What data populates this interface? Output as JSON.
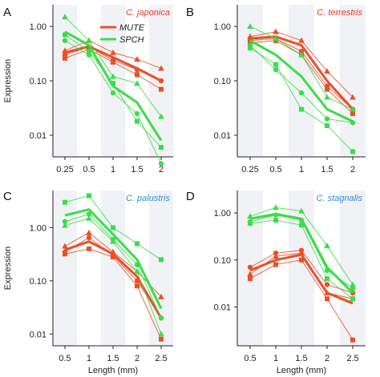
{
  "colors": {
    "mute": "#e8502a",
    "spch": "#3cdc4a",
    "speciesRed": "#e8342a",
    "speciesBlue": "#2a8fd8",
    "stripe": "#f1f2f6"
  },
  "legend": [
    {
      "key": "mute",
      "label": "MUTE"
    },
    {
      "key": "spch",
      "label": "SPCH"
    }
  ],
  "xlabel": "Length (mm)",
  "ylabel": "Expression",
  "chart_data": [
    {
      "letter": "A",
      "species": "C. japonica",
      "species_color": "speciesRed",
      "type": "line",
      "y_scale": "log",
      "ylim": [
        0.004,
        2.5
      ],
      "x": [
        0.25,
        0.5,
        1,
        1.5,
        2
      ],
      "xticklabels": [
        "0.25",
        "0.5",
        "1",
        "1.5",
        "2"
      ],
      "yticks": [
        1,
        0.1,
        0.01
      ],
      "yticklabels": [
        "1.00",
        "0.10",
        "0.01"
      ],
      "series": [
        {
          "name": "MUTE",
          "key": "mute",
          "values": [
            0.33,
            0.43,
            0.27,
            0.17,
            0.1
          ],
          "replicates": [
            {
              "marker": "triangle",
              "values": [
                0.36,
                0.55,
                0.33,
                0.25,
                0.17
              ]
            },
            {
              "marker": "circle",
              "values": [
                0.3,
                0.42,
                0.24,
                0.16,
                0.1
              ]
            },
            {
              "marker": "square",
              "values": [
                0.26,
                0.38,
                0.22,
                0.13,
                0.07
              ]
            }
          ]
        },
        {
          "name": "SPCH",
          "key": "spch",
          "values": [
            0.8,
            0.45,
            0.08,
            0.04,
            0.008
          ],
          "replicates": [
            {
              "marker": "triangle",
              "values": [
                1.5,
                0.55,
                0.12,
                0.09,
                0.022
              ]
            },
            {
              "marker": "circle",
              "values": [
                0.55,
                0.3,
                0.06,
                0.025,
                0.003
              ]
            },
            {
              "marker": "square",
              "values": [
                0.7,
                0.35,
                0.09,
                0.018,
                0.006
              ]
            }
          ]
        }
      ]
    },
    {
      "letter": "B",
      "species": "C. terrestris",
      "species_color": "speciesRed",
      "type": "line",
      "y_scale": "log",
      "ylim": [
        0.004,
        2.5
      ],
      "x": [
        0.25,
        0.5,
        1,
        1.5,
        2
      ],
      "xticklabels": [
        "0.25",
        "0.5",
        "1",
        "1.5",
        "2"
      ],
      "yticks": [
        1,
        0.1,
        0.01
      ],
      "yticklabels": [
        "1.00",
        "0.10",
        "0.01"
      ],
      "series": [
        {
          "name": "MUTE",
          "key": "mute",
          "values": [
            0.6,
            0.65,
            0.45,
            0.1,
            0.03
          ],
          "replicates": [
            {
              "marker": "triangle",
              "values": [
                0.65,
                0.8,
                0.55,
                0.15,
                0.05
              ]
            },
            {
              "marker": "circle",
              "values": [
                0.55,
                0.6,
                0.35,
                0.08,
                0.03
              ]
            },
            {
              "marker": "square",
              "values": [
                0.5,
                0.55,
                0.3,
                0.07,
                0.025
              ]
            }
          ]
        },
        {
          "name": "SPCH",
          "key": "spch",
          "values": [
            0.55,
            0.3,
            0.12,
            0.03,
            0.018
          ],
          "replicates": [
            {
              "marker": "triangle",
              "values": [
                1.0,
                0.6,
                0.3,
                0.05,
                0.03
              ]
            },
            {
              "marker": "circle",
              "values": [
                0.45,
                0.16,
                0.06,
                0.02,
                0.017
              ]
            },
            {
              "marker": "square",
              "values": [
                0.4,
                0.2,
                0.03,
                0.015,
                0.005
              ]
            }
          ]
        }
      ]
    },
    {
      "letter": "C",
      "species": "C. palustris",
      "species_color": "speciesBlue",
      "type": "line",
      "y_scale": "log",
      "ylim": [
        0.006,
        5
      ],
      "x": [
        0.5,
        1,
        1.5,
        2,
        2.5
      ],
      "xticklabels": [
        "0.5",
        "1",
        "1.5",
        "2",
        "2.5"
      ],
      "yticks": [
        1,
        0.1,
        0.01
      ],
      "yticklabels": [
        "1.00",
        "0.10",
        "0.01"
      ],
      "series": [
        {
          "name": "MUTE",
          "key": "mute",
          "values": [
            0.38,
            0.55,
            0.32,
            0.12,
            0.02
          ],
          "replicates": [
            {
              "marker": "triangle",
              "values": [
                0.45,
                0.8,
                0.35,
                0.15,
                0.05
              ]
            },
            {
              "marker": "circle",
              "values": [
                0.35,
                0.65,
                0.3,
                0.1,
                0.02
              ]
            },
            {
              "marker": "square",
              "values": [
                0.32,
                0.4,
                0.28,
                0.08,
                0.008
              ]
            }
          ]
        },
        {
          "name": "SPCH",
          "key": "spch",
          "values": [
            1.7,
            2.2,
            0.75,
            0.25,
            0.03
          ],
          "replicates": [
            {
              "marker": "square",
              "values": [
                3.0,
                4.0,
                1.0,
                0.5,
                0.25
              ]
            },
            {
              "marker": "circle",
              "values": [
                1.3,
                1.8,
                0.6,
                0.2,
                0.02
              ]
            },
            {
              "marker": "triangle",
              "values": [
                1.1,
                1.5,
                0.55,
                0.15,
                0.01
              ]
            }
          ]
        }
      ]
    },
    {
      "letter": "D",
      "species": "C. stagnalis",
      "species_color": "speciesBlue",
      "type": "line",
      "y_scale": "log",
      "ylim": [
        0.0015,
        3
      ],
      "x": [
        0.5,
        1,
        1.5,
        2,
        2.5
      ],
      "xticklabels": [
        "0.5",
        "1",
        "1.5",
        "2",
        "2.5"
      ],
      "yticks": [
        1,
        0.1,
        0.01
      ],
      "yticklabels": [
        "1.00",
        "0.10",
        "0.01"
      ],
      "series": [
        {
          "name": "MUTE",
          "key": "mute",
          "values": [
            0.06,
            0.1,
            0.13,
            0.02,
            0.012
          ],
          "replicates": [
            {
              "marker": "circle",
              "values": [
                0.07,
                0.14,
                0.16,
                0.03,
                0.02
              ]
            },
            {
              "marker": "triangle",
              "values": [
                0.05,
                0.12,
                0.14,
                0.02,
                0.015
              ]
            },
            {
              "marker": "square",
              "values": [
                0.04,
                0.08,
                0.1,
                0.015,
                0.002
              ]
            }
          ]
        },
        {
          "name": "SPCH",
          "key": "spch",
          "values": [
            0.75,
            0.95,
            0.75,
            0.07,
            0.02
          ],
          "replicates": [
            {
              "marker": "triangle",
              "values": [
                0.85,
                1.3,
                1.1,
                0.2,
                0.03
              ]
            },
            {
              "marker": "circle",
              "values": [
                0.65,
                0.9,
                0.7,
                0.06,
                0.025
              ]
            },
            {
              "marker": "square",
              "values": [
                0.6,
                0.7,
                0.55,
                0.04,
                0.015
              ]
            }
          ]
        }
      ]
    }
  ]
}
